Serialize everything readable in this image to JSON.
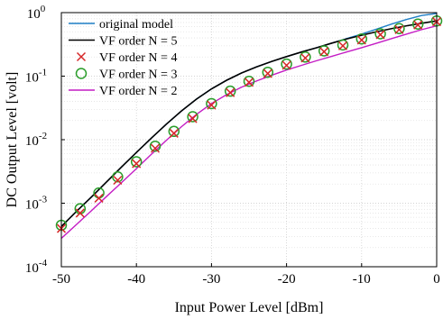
{
  "chart_data": {
    "type": "line",
    "title": "",
    "xlabel": "Input Power Level [dBm]",
    "ylabel": "DC Output Level [volt]",
    "xlim": [
      -50,
      0
    ],
    "ylim_log10": [
      -4,
      0
    ],
    "yscale": "log",
    "grid": true,
    "legend_position": "top-left",
    "x_ticks": [
      {
        "v": -50,
        "label": "-50"
      },
      {
        "v": -40,
        "label": "-40"
      },
      {
        "v": -30,
        "label": "-30"
      },
      {
        "v": -20,
        "label": "-20"
      },
      {
        "v": -10,
        "label": "-10"
      },
      {
        "v": 0,
        "label": "0"
      }
    ],
    "y_ticks": [
      {
        "exp": -4,
        "base": "10",
        "sup": "-4"
      },
      {
        "exp": -3,
        "base": "10",
        "sup": "-3"
      },
      {
        "exp": -2,
        "base": "10",
        "sup": "-2"
      },
      {
        "exp": -1,
        "base": "10",
        "sup": "-1"
      },
      {
        "exp": 0,
        "base": "10",
        "sup": "0"
      }
    ],
    "series": [
      {
        "name": "original model",
        "color": "#1f7fc6",
        "style": "line",
        "points": [
          [
            -50,
            0.00043
          ],
          [
            -48,
            0.00074
          ],
          [
            -46,
            0.00125
          ],
          [
            -44,
            0.00215
          ],
          [
            -42,
            0.0037
          ],
          [
            -40,
            0.0063
          ],
          [
            -38,
            0.0106
          ],
          [
            -36,
            0.0176
          ],
          [
            -34,
            0.0283
          ],
          [
            -32,
            0.0435
          ],
          [
            -30,
            0.063
          ],
          [
            -28,
            0.086
          ],
          [
            -26,
            0.112
          ],
          [
            -24,
            0.14
          ],
          [
            -22,
            0.17
          ],
          [
            -20,
            0.203
          ],
          [
            -18,
            0.24
          ],
          [
            -16,
            0.28
          ],
          [
            -14,
            0.33
          ],
          [
            -12,
            0.39
          ],
          [
            -10,
            0.46
          ],
          [
            -8,
            0.55
          ],
          [
            -6,
            0.66
          ],
          [
            -4,
            0.78
          ],
          [
            -2,
            0.9
          ],
          [
            0,
            0.97
          ]
        ]
      },
      {
        "name": "VF order N = 5",
        "color": "#000000",
        "style": "line",
        "points": [
          [
            -50,
            0.00043
          ],
          [
            -48,
            0.00074
          ],
          [
            -46,
            0.00125
          ],
          [
            -44,
            0.00215
          ],
          [
            -42,
            0.0037
          ],
          [
            -40,
            0.0063
          ],
          [
            -38,
            0.0106
          ],
          [
            -36,
            0.0176
          ],
          [
            -34,
            0.0283
          ],
          [
            -32,
            0.0435
          ],
          [
            -30,
            0.063
          ],
          [
            -28,
            0.086
          ],
          [
            -26,
            0.112
          ],
          [
            -24,
            0.14
          ],
          [
            -22,
            0.17
          ],
          [
            -20,
            0.203
          ],
          [
            -18,
            0.24
          ],
          [
            -16,
            0.28
          ],
          [
            -14,
            0.33
          ],
          [
            -12,
            0.385
          ],
          [
            -10,
            0.44
          ],
          [
            -8,
            0.5
          ],
          [
            -6,
            0.56
          ],
          [
            -4,
            0.62
          ],
          [
            -2,
            0.68
          ],
          [
            0,
            0.74
          ]
        ]
      },
      {
        "name": "VF order N =  4",
        "color": "#d62728",
        "style": "x",
        "points": [
          [
            -50,
            0.0004
          ],
          [
            -47.5,
            0.0007
          ],
          [
            -45,
            0.0012
          ],
          [
            -42.5,
            0.0023
          ],
          [
            -40,
            0.0042
          ],
          [
            -37.5,
            0.0073
          ],
          [
            -35,
            0.0126
          ],
          [
            -32.5,
            0.0215
          ],
          [
            -30,
            0.035
          ],
          [
            -27.5,
            0.055
          ],
          [
            -25,
            0.08
          ],
          [
            -22.5,
            0.11
          ],
          [
            -20,
            0.148
          ],
          [
            -17.5,
            0.193
          ],
          [
            -15,
            0.243
          ],
          [
            -12.5,
            0.3
          ],
          [
            -10,
            0.37
          ],
          [
            -7.5,
            0.45
          ],
          [
            -5,
            0.54
          ],
          [
            -2.5,
            0.64
          ],
          [
            0,
            0.72
          ]
        ]
      },
      {
        "name": "VF order N =  3",
        "color": "#2a9d2a",
        "style": "o",
        "points": [
          [
            -50,
            0.00045
          ],
          [
            -47.5,
            0.00082
          ],
          [
            -45,
            0.00145
          ],
          [
            -42.5,
            0.0026
          ],
          [
            -40,
            0.0045
          ],
          [
            -37.5,
            0.0079
          ],
          [
            -35,
            0.0135
          ],
          [
            -32.5,
            0.023
          ],
          [
            -30,
            0.037
          ],
          [
            -27.5,
            0.058
          ],
          [
            -25,
            0.083
          ],
          [
            -22.5,
            0.115
          ],
          [
            -20,
            0.155
          ],
          [
            -17.5,
            0.2
          ],
          [
            -15,
            0.25
          ],
          [
            -12.5,
            0.31
          ],
          [
            -10,
            0.385
          ],
          [
            -7.5,
            0.465
          ],
          [
            -5,
            0.56
          ],
          [
            -2.5,
            0.66
          ],
          [
            0,
            0.74
          ]
        ]
      },
      {
        "name": "VF order N = 2",
        "color": "#c41cc4",
        "style": "line",
        "points": [
          [
            -50,
            0.00028
          ],
          [
            -48,
            0.00046
          ],
          [
            -46,
            0.00076
          ],
          [
            -44,
            0.00127
          ],
          [
            -42,
            0.0021
          ],
          [
            -40,
            0.0035
          ],
          [
            -38,
            0.0059
          ],
          [
            -36,
            0.0098
          ],
          [
            -34,
            0.016
          ],
          [
            -32,
            0.025
          ],
          [
            -30,
            0.037
          ],
          [
            -28,
            0.051
          ],
          [
            -26,
            0.067
          ],
          [
            -24,
            0.084
          ],
          [
            -22,
            0.103
          ],
          [
            -20,
            0.125
          ],
          [
            -18,
            0.148
          ],
          [
            -16,
            0.175
          ],
          [
            -14,
            0.205
          ],
          [
            -12,
            0.24
          ],
          [
            -10,
            0.28
          ],
          [
            -8,
            0.33
          ],
          [
            -6,
            0.39
          ],
          [
            -4,
            0.46
          ],
          [
            -2,
            0.54
          ],
          [
            0,
            0.62
          ]
        ]
      }
    ]
  }
}
